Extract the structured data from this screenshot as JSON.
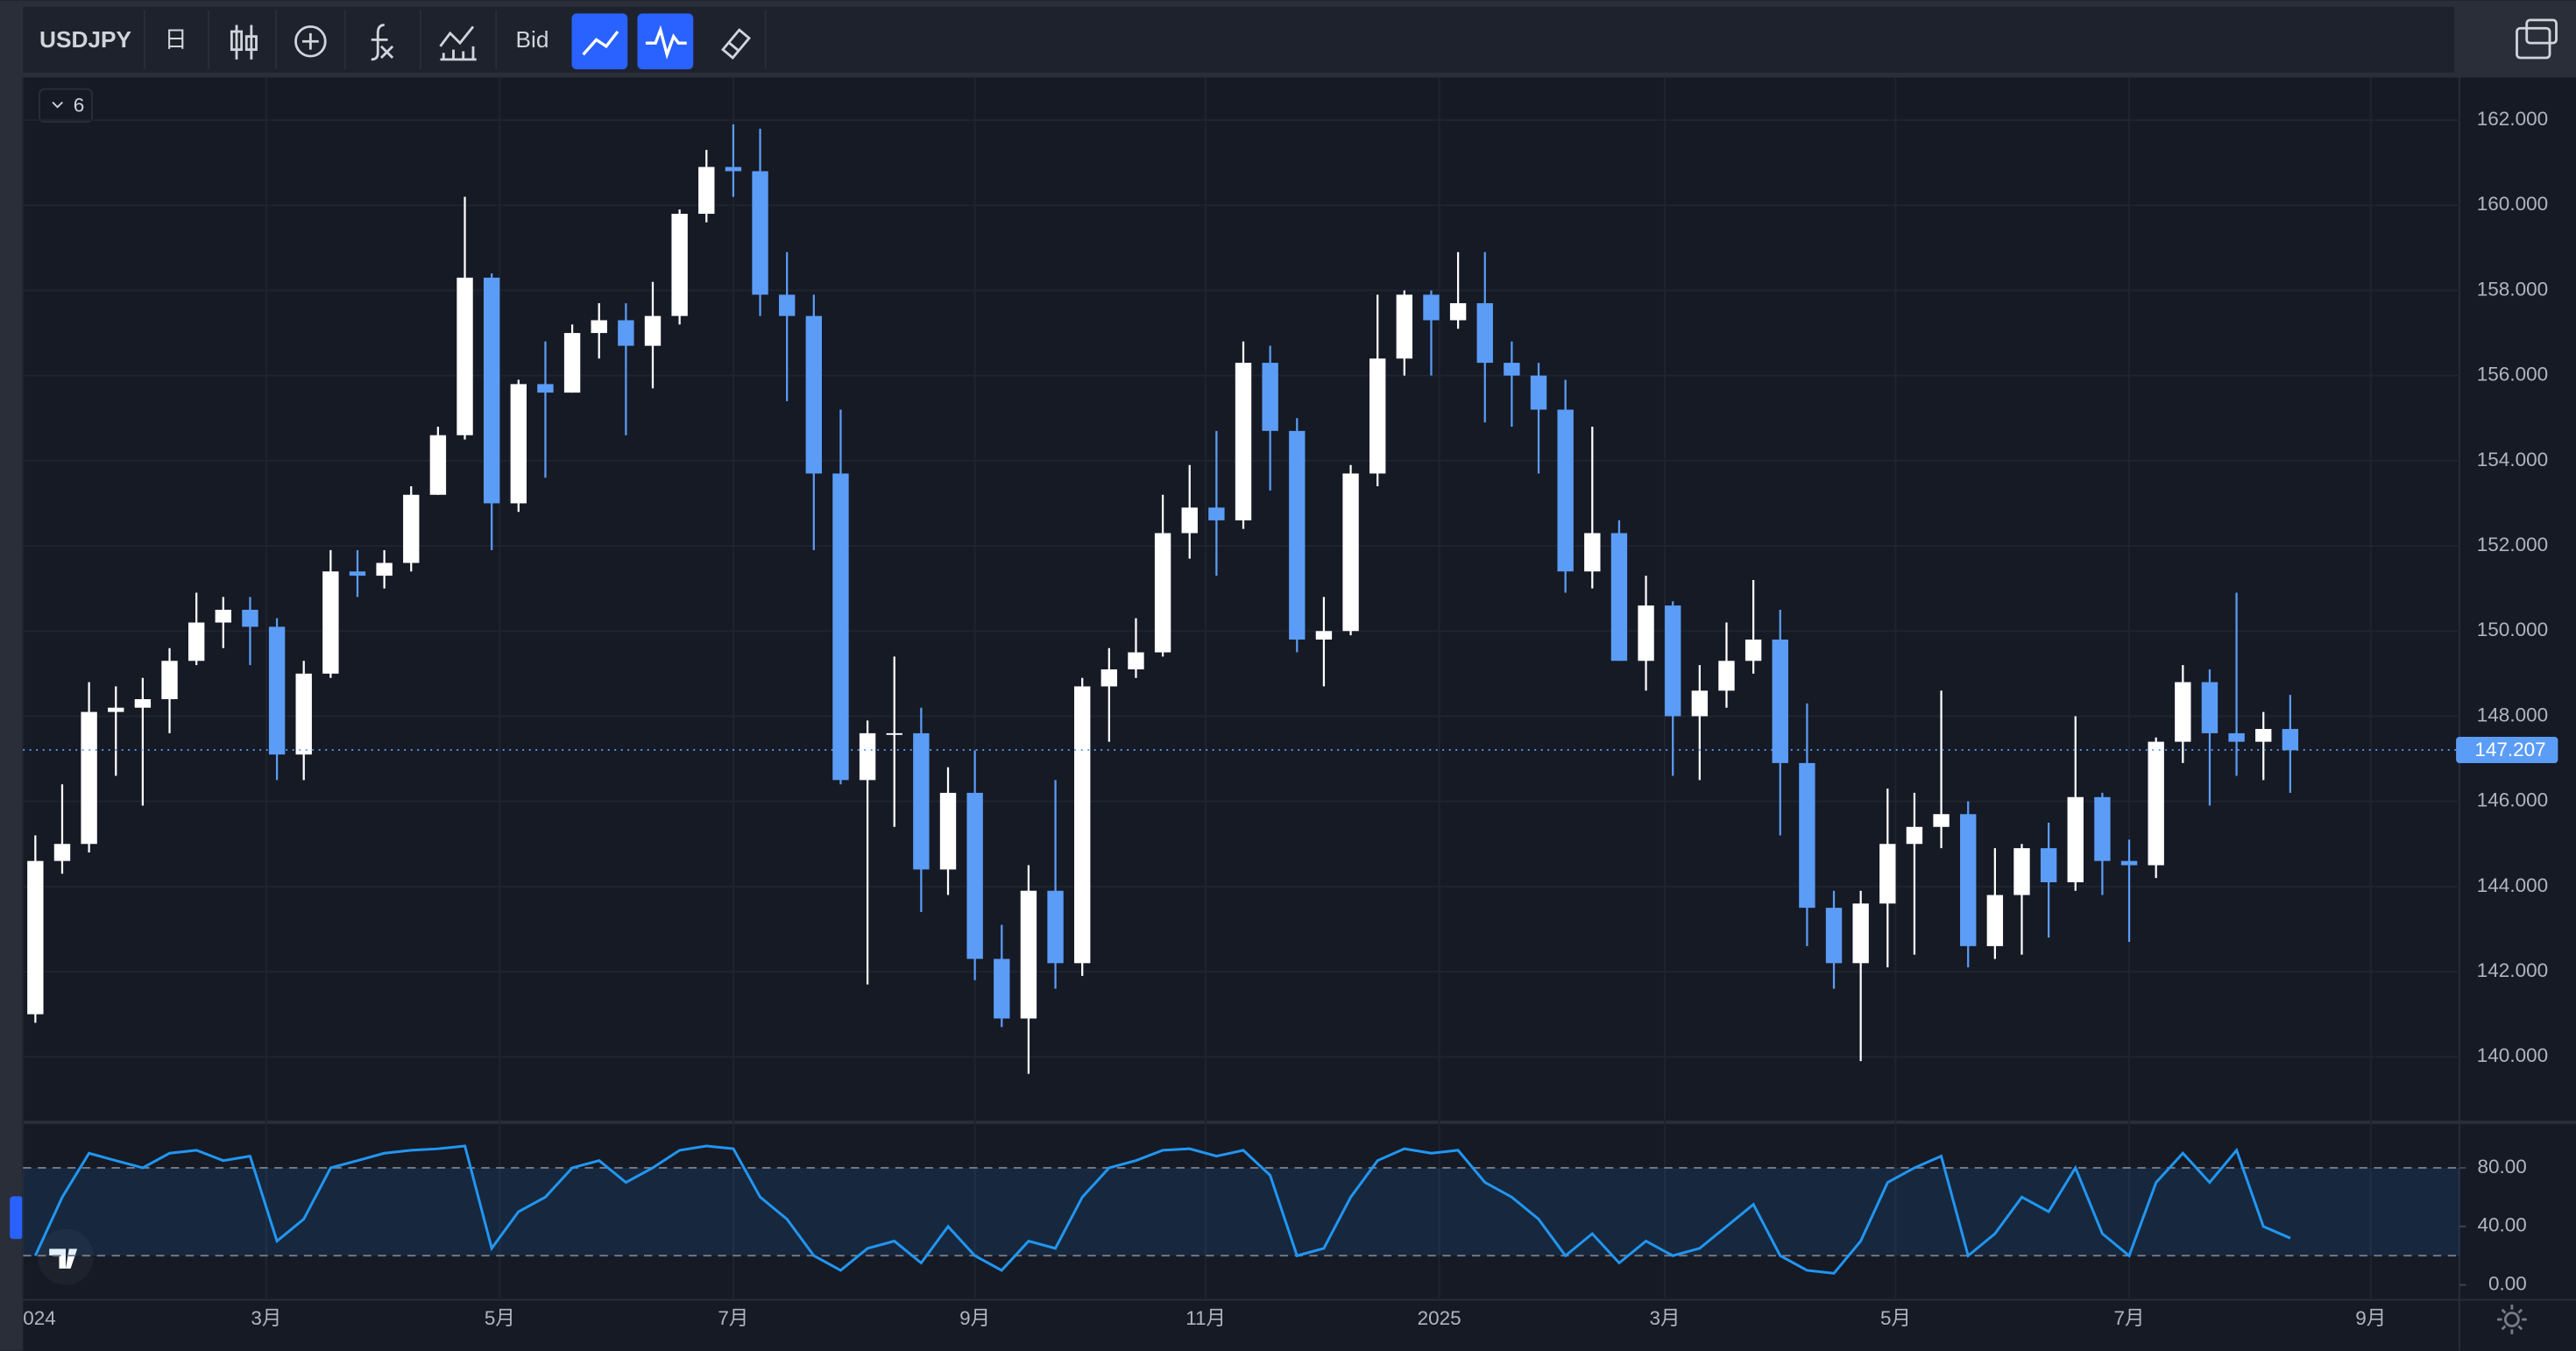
{
  "toolbar": {
    "symbol": "USDJPY",
    "interval": "日",
    "price_source": "Bid"
  },
  "indicators_collapsed": 6,
  "chart_data": [
    {
      "type": "candlestick",
      "up_color": "#ffffff",
      "down_color": "#5b9cf6",
      "candles": [
        [
          141.0,
          145.2,
          140.8,
          144.6
        ],
        [
          144.6,
          146.4,
          144.3,
          145.0
        ],
        [
          145.0,
          148.8,
          144.8,
          148.1
        ],
        [
          148.1,
          148.7,
          146.6,
          148.2
        ],
        [
          148.2,
          148.9,
          145.9,
          148.4
        ],
        [
          148.4,
          149.6,
          147.6,
          149.3
        ],
        [
          149.3,
          150.9,
          149.2,
          150.2
        ],
        [
          150.2,
          150.8,
          149.6,
          150.5
        ],
        [
          150.5,
          150.8,
          149.2,
          150.1
        ],
        [
          150.1,
          150.3,
          146.5,
          147.1
        ],
        [
          147.1,
          149.3,
          146.5,
          149.0
        ],
        [
          149.0,
          151.9,
          148.9,
          151.4
        ],
        [
          151.4,
          151.9,
          150.8,
          151.3
        ],
        [
          151.3,
          151.9,
          151.0,
          151.6
        ],
        [
          151.6,
          153.4,
          151.4,
          153.2
        ],
        [
          153.2,
          154.8,
          153.2,
          154.6
        ],
        [
          154.6,
          160.2,
          154.5,
          158.3
        ],
        [
          158.3,
          158.4,
          151.9,
          153.0
        ],
        [
          153.0,
          155.9,
          152.8,
          155.8
        ],
        [
          155.8,
          156.8,
          153.6,
          155.6
        ],
        [
          155.6,
          157.2,
          155.6,
          157.0
        ],
        [
          157.0,
          157.7,
          156.4,
          157.3
        ],
        [
          157.3,
          157.7,
          154.6,
          156.7
        ],
        [
          156.7,
          158.2,
          155.7,
          157.4
        ],
        [
          157.4,
          159.9,
          157.2,
          159.8
        ],
        [
          159.8,
          161.3,
          159.6,
          160.9
        ],
        [
          160.9,
          161.9,
          160.2,
          160.8
        ],
        [
          160.8,
          161.8,
          157.4,
          157.9
        ],
        [
          157.9,
          158.9,
          155.4,
          157.4
        ],
        [
          157.4,
          157.9,
          151.9,
          153.7
        ],
        [
          153.7,
          155.2,
          146.4,
          146.5
        ],
        [
          146.5,
          147.9,
          141.7,
          147.6
        ],
        [
          147.6,
          149.4,
          145.4,
          147.6
        ],
        [
          147.6,
          148.2,
          143.4,
          144.4
        ],
        [
          144.4,
          146.8,
          143.8,
          146.2
        ],
        [
          146.2,
          147.2,
          141.8,
          142.3
        ],
        [
          142.3,
          143.1,
          140.7,
          140.9
        ],
        [
          140.9,
          144.5,
          139.6,
          143.9
        ],
        [
          143.9,
          146.5,
          141.6,
          142.2
        ],
        [
          142.2,
          148.9,
          141.9,
          148.7
        ],
        [
          148.7,
          149.6,
          147.4,
          149.1
        ],
        [
          149.1,
          150.3,
          148.9,
          149.5
        ],
        [
          149.5,
          153.2,
          149.4,
          152.3
        ],
        [
          152.3,
          153.9,
          151.7,
          152.9
        ],
        [
          152.9,
          154.7,
          151.3,
          152.6
        ],
        [
          152.6,
          156.8,
          152.4,
          156.3
        ],
        [
          156.3,
          156.7,
          153.3,
          154.7
        ],
        [
          154.7,
          155.0,
          149.5,
          149.8
        ],
        [
          149.8,
          150.8,
          148.7,
          150.0
        ],
        [
          150.0,
          153.9,
          149.9,
          153.7
        ],
        [
          153.7,
          157.9,
          153.4,
          156.4
        ],
        [
          156.4,
          158.0,
          156.0,
          157.9
        ],
        [
          157.9,
          158.0,
          156.0,
          157.3
        ],
        [
          157.3,
          158.9,
          157.1,
          157.7
        ],
        [
          157.7,
          158.9,
          154.9,
          156.3
        ],
        [
          156.3,
          156.8,
          154.8,
          156.0
        ],
        [
          156.0,
          156.3,
          153.7,
          155.2
        ],
        [
          155.2,
          155.9,
          150.9,
          151.4
        ],
        [
          151.4,
          154.8,
          151.0,
          152.3
        ],
        [
          152.3,
          152.6,
          149.3,
          149.3
        ],
        [
          149.3,
          151.3,
          148.6,
          150.6
        ],
        [
          150.6,
          150.7,
          146.6,
          148.0
        ],
        [
          148.0,
          149.2,
          146.5,
          148.6
        ],
        [
          148.6,
          150.2,
          148.2,
          149.3
        ],
        [
          149.3,
          151.2,
          149.0,
          149.8
        ],
        [
          149.8,
          150.5,
          145.2,
          146.9
        ],
        [
          146.9,
          148.3,
          142.6,
          143.5
        ],
        [
          143.5,
          143.9,
          141.6,
          142.2
        ],
        [
          142.2,
          143.9,
          139.9,
          143.6
        ],
        [
          143.6,
          146.3,
          142.1,
          145.0
        ],
        [
          145.0,
          146.2,
          142.4,
          145.4
        ],
        [
          145.4,
          148.6,
          144.9,
          145.7
        ],
        [
          145.7,
          146.0,
          142.1,
          142.6
        ],
        [
          142.6,
          144.9,
          142.3,
          143.8
        ],
        [
          143.8,
          145.0,
          142.4,
          144.9
        ],
        [
          144.9,
          145.5,
          142.8,
          144.1
        ],
        [
          144.1,
          148.0,
          143.9,
          146.1
        ],
        [
          146.1,
          146.2,
          143.8,
          144.6
        ],
        [
          144.6,
          145.1,
          142.7,
          144.5
        ],
        [
          144.5,
          147.5,
          144.2,
          147.4
        ],
        [
          147.4,
          149.2,
          146.9,
          148.8
        ],
        [
          148.8,
          149.1,
          145.9,
          147.6
        ],
        [
          147.6,
          150.9,
          146.6,
          147.4
        ],
        [
          147.4,
          148.1,
          146.5,
          147.7
        ],
        [
          147.7,
          148.5,
          146.2,
          147.2
        ]
      ],
      "xlim": [
        -0.46,
        90.3
      ],
      "xticks": [
        {
          "value": -0.46,
          "label": "024"
        },
        {
          "value": 8.6,
          "label": "3月"
        },
        {
          "value": 17.3,
          "label": "5月"
        },
        {
          "value": 26,
          "label": "7月"
        },
        {
          "value": 35,
          "label": "9月"
        },
        {
          "value": 43.6,
          "label": "11月"
        },
        {
          "value": 52.3,
          "label": "2025"
        },
        {
          "value": 60.7,
          "label": "3月"
        },
        {
          "value": 69.3,
          "label": "5月"
        },
        {
          "value": 78,
          "label": "7月"
        },
        {
          "value": 87,
          "label": "9月"
        }
      ],
      "ylim": [
        138.5,
        163.0
      ],
      "yticks": [
        {
          "value": 140,
          "label": "140.000"
        },
        {
          "value": 142,
          "label": "142.000"
        },
        {
          "value": 144,
          "label": "144.000"
        },
        {
          "value": 146,
          "label": "146.000"
        },
        {
          "value": 148,
          "label": "148.000"
        },
        {
          "value": 150,
          "label": "150.000"
        },
        {
          "value": 152,
          "label": "152.000"
        },
        {
          "value": 154,
          "label": "154.000"
        },
        {
          "value": 156,
          "label": "156.000"
        },
        {
          "value": 158,
          "label": "158.000"
        },
        {
          "value": 160,
          "label": "160.000"
        },
        {
          "value": 162,
          "label": "162.000"
        }
      ],
      "last_price": 147.207,
      "last_price_color": "#5b9cf6",
      "grid": true
    },
    {
      "type": "line",
      "color": "#2196f3",
      "values": [
        20,
        60,
        90,
        85,
        80,
        90,
        92,
        85,
        88,
        30,
        45,
        80,
        85,
        90,
        92,
        93,
        95,
        25,
        50,
        60,
        80,
        85,
        70,
        80,
        92,
        95,
        93,
        60,
        45,
        20,
        10,
        25,
        30,
        15,
        40,
        20,
        10,
        30,
        25,
        60,
        80,
        85,
        92,
        93,
        88,
        92,
        75,
        20,
        25,
        60,
        85,
        93,
        90,
        92,
        70,
        60,
        45,
        20,
        35,
        15,
        30,
        20,
        25,
        40,
        55,
        20,
        10,
        8,
        30,
        70,
        80,
        88,
        20,
        35,
        60,
        50,
        80,
        35,
        20,
        70,
        90,
        70,
        92,
        40,
        32
      ],
      "ylim": [
        -9,
        110
      ],
      "yticks": [
        {
          "value": 0,
          "label": "0.00"
        },
        {
          "value": 40,
          "label": "40.00"
        },
        {
          "value": 80,
          "label": "80.00"
        }
      ],
      "band": [
        20,
        80
      ]
    }
  ]
}
